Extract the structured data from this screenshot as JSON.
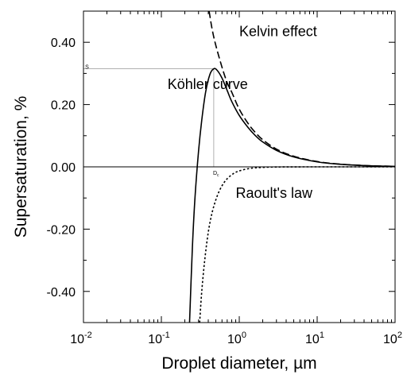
{
  "chart_data": {
    "type": "line",
    "xlabel": "Droplet diameter, µm",
    "ylabel": "Supersaturation, %",
    "xscale": "log",
    "xlim": [
      0.01,
      100
    ],
    "ylim": [
      -0.5,
      0.5
    ],
    "x_ticks": [
      {
        "value": 0.01,
        "base": "10",
        "exp": "-2"
      },
      {
        "value": 0.1,
        "base": "10",
        "exp": "-1"
      },
      {
        "value": 1,
        "base": "10",
        "exp": "0"
      },
      {
        "value": 10,
        "base": "10",
        "exp": "1"
      },
      {
        "value": 100,
        "base": "10",
        "exp": "2"
      }
    ],
    "y_ticks": [
      {
        "value": 0.4,
        "label": "0.40"
      },
      {
        "value": 0.2,
        "label": "0.20"
      },
      {
        "value": 0.0,
        "label": "0.00"
      },
      {
        "value": -0.2,
        "label": "-0.20"
      },
      {
        "value": -0.4,
        "label": "-0.40"
      }
    ],
    "series": [
      {
        "style": "solid",
        "x": [
          0.23,
          0.25,
          0.27,
          0.3,
          0.33,
          0.37,
          0.42,
          0.47,
          0.52,
          0.6,
          0.7,
          0.8,
          1.0,
          1.3,
          1.6,
          2.0,
          3.0,
          5.0,
          10,
          20,
          50,
          100
        ],
        "y": [
          -0.5,
          -0.26,
          -0.1,
          0.05,
          0.15,
          0.24,
          0.297,
          0.315,
          0.31,
          0.285,
          0.245,
          0.21,
          0.165,
          0.126,
          0.101,
          0.08,
          0.053,
          0.032,
          0.016,
          0.008,
          0.003,
          0.0016
        ]
      },
      {
        "style": "dashed",
        "x": [
          0.41,
          0.45,
          0.5,
          0.6,
          0.7,
          0.8,
          1.0,
          1.3,
          1.6,
          2.0,
          3.0,
          5.0,
          10,
          20,
          50,
          100
        ],
        "y": [
          0.5,
          0.44,
          0.39,
          0.32,
          0.27,
          0.24,
          0.185,
          0.139,
          0.111,
          0.087,
          0.057,
          0.034,
          0.017,
          0.0085,
          0.0034,
          0.0017
        ]
      },
      {
        "style": "dotted",
        "x": [
          0.31,
          0.33,
          0.36,
          0.4,
          0.45,
          0.52,
          0.6,
          0.7,
          0.85,
          1.0,
          1.3,
          1.7,
          2.5,
          4,
          8,
          20,
          100
        ],
        "y": [
          -0.5,
          -0.4,
          -0.3,
          -0.21,
          -0.145,
          -0.094,
          -0.061,
          -0.038,
          -0.021,
          -0.013,
          -0.006,
          -0.0027,
          -0.0008,
          -0.0002,
          0.0,
          0.0,
          0.0
        ]
      }
    ],
    "annotations": [
      {
        "text": "Kelvin effect",
        "x": 1.0,
        "y": 0.42
      },
      {
        "text": "Köhler curve",
        "x": 0.12,
        "y": 0.25
      },
      {
        "text": "Raoult's law",
        "x": 0.9,
        "y": -0.1
      },
      {
        "text": "S",
        "x": 0.0105,
        "y": 0.315
      },
      {
        "text": "D",
        "sub": "c",
        "x": 0.46,
        "y": -0.025
      }
    ],
    "critical_point": {
      "x": 0.47,
      "y": 0.315
    },
    "grid": false
  }
}
